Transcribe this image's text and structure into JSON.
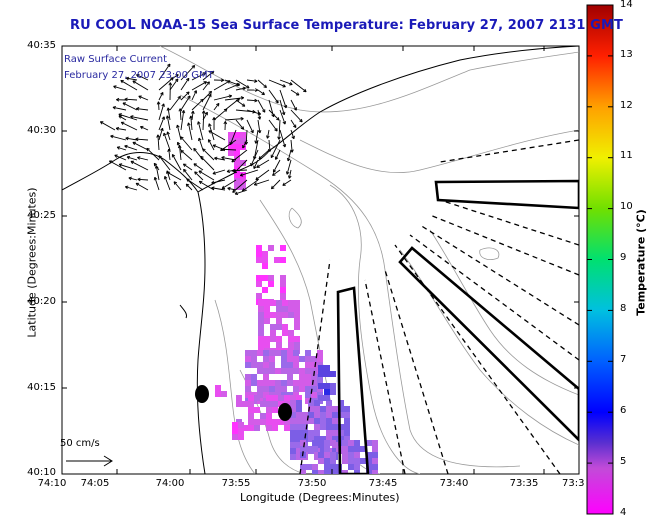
{
  "title": "RU COOL  NOAA-15  Sea Surface Temperature:  February 27, 2007 2131 GMT",
  "overlay": {
    "line1": "Raw Surface Current",
    "line2": "February 27, 2007 23:00 GMT"
  },
  "axes": {
    "xlabel": "Longitude (Degrees:Minutes)",
    "ylabel": "Latitude (Degrees:Minutes)",
    "x_ticks": [
      "74:10",
      "74:05",
      "74:00",
      "73:55",
      "73:50",
      "73:45",
      "73:40",
      "73:35",
      "73:3"
    ],
    "y_ticks": [
      "40:35",
      "40:30",
      "40:25",
      "40:20",
      "40:15",
      "40:10"
    ]
  },
  "colorbar": {
    "title": "Temperature (°C)",
    "ticks": [
      "14",
      "13",
      "12",
      "11",
      "10",
      "9",
      "8",
      "7",
      "6",
      "5",
      "4"
    ],
    "range": [
      4,
      14
    ]
  },
  "scale_label": "50 cm/s",
  "colors": {
    "title": "#1a1ab8",
    "overlay_text": "#2a2aa0",
    "land_line": "#000000",
    "bathymetry": "#999999"
  }
}
